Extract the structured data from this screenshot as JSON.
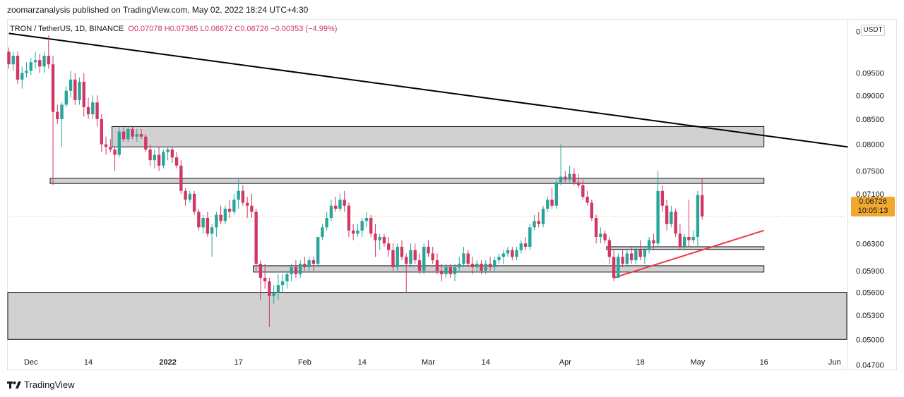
{
  "header": {
    "publisher_text": "zoomarzanalysis published on TradingView.com, May 02, 2022 18:24 UTC+4:30",
    "symbol": "TRON / TetherUS, 1D, BINANCE",
    "open": "O0.07078",
    "high": "H0.07365",
    "low": "L0.06672",
    "close": "C0.06726",
    "change": "−0.00353 (−4.99%)"
  },
  "axis": {
    "currency": "USDT",
    "price_labels": [
      "0.10500",
      "0.09500",
      "0.09000",
      "0.08500",
      "0.08000",
      "0.07500",
      "0.07100",
      "0.06300",
      "0.05900",
      "0.05600",
      "0.05300",
      "0.05000",
      "0.04700"
    ],
    "time_labels": [
      "Dec",
      "14",
      "2022",
      "17",
      "Feb",
      "14",
      "Mar",
      "14",
      "Apr",
      "18",
      "May",
      "16",
      "Jun"
    ]
  },
  "last_price": {
    "value": "0.06726",
    "countdown": "10:05:13"
  },
  "footer": {
    "logo_text": "TradingView"
  },
  "colors": {
    "up": "#26a69a",
    "down": "#ef5350",
    "down_alt": "#d13762",
    "zone": "#d1d1d1",
    "trendline": "#000000",
    "support": "#f23645",
    "last_price": "#f0a82e"
  },
  "chart_data": {
    "type": "candlestick",
    "title": "TRON / TetherUS, 1D, BINANCE",
    "ylim": [
      0.0465,
      0.108
    ],
    "y_scale": "log",
    "xlim": [
      "2021-11-26",
      "2022-06-04"
    ],
    "grid": false,
    "candles_ohlc": [
      [
        "2021-11-26",
        0.1,
        0.101,
        0.096,
        0.097
      ],
      [
        "2021-11-27",
        0.097,
        0.1,
        0.0955,
        0.099
      ],
      [
        "2021-11-28",
        0.099,
        0.1,
        0.0925,
        0.0935
      ],
      [
        "2021-11-29",
        0.0935,
        0.0965,
        0.0915,
        0.095
      ],
      [
        "2021-11-30",
        0.095,
        0.0975,
        0.094,
        0.0955
      ],
      [
        "2021-12-01",
        0.0955,
        0.0985,
        0.0945,
        0.0975
      ],
      [
        "2021-12-02",
        0.0975,
        0.1,
        0.096,
        0.098
      ],
      [
        "2021-12-03",
        0.098,
        0.0995,
        0.095,
        0.0965
      ],
      [
        "2021-12-04",
        0.0965,
        0.1,
        0.095,
        0.099
      ],
      [
        "2021-12-05",
        0.099,
        0.104,
        0.096,
        0.097
      ],
      [
        "2021-12-06",
        0.097,
        0.099,
        0.0725,
        0.0865
      ],
      [
        "2021-12-07",
        0.0865,
        0.088,
        0.084,
        0.085
      ],
      [
        "2021-12-08",
        0.085,
        0.0885,
        0.0795,
        0.088
      ],
      [
        "2021-12-09",
        0.088,
        0.092,
        0.0875,
        0.091
      ],
      [
        "2021-12-10",
        0.091,
        0.0955,
        0.0895,
        0.0935
      ],
      [
        "2021-12-11",
        0.0935,
        0.095,
        0.088,
        0.089
      ],
      [
        "2021-12-12",
        0.089,
        0.094,
        0.088,
        0.093
      ],
      [
        "2021-12-13",
        0.093,
        0.095,
        0.0855,
        0.0875
      ],
      [
        "2021-12-14",
        0.0875,
        0.0895,
        0.085,
        0.086
      ],
      [
        "2021-12-15",
        0.086,
        0.09,
        0.085,
        0.0885
      ],
      [
        "2021-12-16",
        0.0885,
        0.09,
        0.0835,
        0.085
      ],
      [
        "2021-12-17",
        0.085,
        0.086,
        0.0785,
        0.08
      ],
      [
        "2021-12-18",
        0.08,
        0.0815,
        0.078,
        0.0795
      ],
      [
        "2021-12-19",
        0.0795,
        0.081,
        0.0785,
        0.079
      ],
      [
        "2021-12-20",
        0.079,
        0.0795,
        0.075,
        0.078
      ],
      [
        "2021-12-21",
        0.078,
        0.0835,
        0.0775,
        0.0825
      ],
      [
        "2021-12-22",
        0.0825,
        0.0835,
        0.0805,
        0.081
      ],
      [
        "2021-12-23",
        0.081,
        0.0835,
        0.0805,
        0.083
      ],
      [
        "2021-12-24",
        0.083,
        0.0835,
        0.081,
        0.0815
      ],
      [
        "2021-12-25",
        0.0815,
        0.083,
        0.0805,
        0.082
      ],
      [
        "2021-12-26",
        0.082,
        0.083,
        0.081,
        0.0815
      ],
      [
        "2021-12-27",
        0.0815,
        0.082,
        0.0785,
        0.079
      ],
      [
        "2021-12-28",
        0.079,
        0.08,
        0.076,
        0.077
      ],
      [
        "2021-12-29",
        0.077,
        0.079,
        0.0755,
        0.078
      ],
      [
        "2021-12-30",
        0.078,
        0.0795,
        0.075,
        0.076
      ],
      [
        "2021-12-31",
        0.076,
        0.079,
        0.0755,
        0.0785
      ],
      [
        "2022-01-01",
        0.0785,
        0.0795,
        0.077,
        0.079
      ],
      [
        "2022-01-02",
        0.079,
        0.0795,
        0.0765,
        0.0775
      ],
      [
        "2022-01-03",
        0.0775,
        0.0785,
        0.0755,
        0.076
      ],
      [
        "2022-01-04",
        0.076,
        0.077,
        0.071,
        0.0715
      ],
      [
        "2022-01-05",
        0.0715,
        0.072,
        0.069,
        0.07
      ],
      [
        "2022-01-06",
        0.07,
        0.0715,
        0.0695,
        0.071
      ],
      [
        "2022-01-07",
        0.071,
        0.0715,
        0.0675,
        0.068
      ],
      [
        "2022-01-08",
        0.068,
        0.0685,
        0.065,
        0.0655
      ],
      [
        "2022-01-09",
        0.0655,
        0.0675,
        0.0645,
        0.067
      ],
      [
        "2022-01-10",
        0.067,
        0.068,
        0.064,
        0.0645
      ],
      [
        "2022-01-11",
        0.0645,
        0.066,
        0.061,
        0.0655
      ],
      [
        "2022-01-12",
        0.0655,
        0.068,
        0.064,
        0.0675
      ],
      [
        "2022-01-13",
        0.0675,
        0.069,
        0.066,
        0.0665
      ],
      [
        "2022-01-14",
        0.0665,
        0.069,
        0.066,
        0.0685
      ],
      [
        "2022-01-15",
        0.0685,
        0.07,
        0.067,
        0.068
      ],
      [
        "2022-01-16",
        0.068,
        0.071,
        0.0675,
        0.07
      ],
      [
        "2022-01-17",
        0.07,
        0.0735,
        0.0685,
        0.0715
      ],
      [
        "2022-01-18",
        0.0715,
        0.0725,
        0.069,
        0.0695
      ],
      [
        "2022-01-19",
        0.0695,
        0.0705,
        0.067,
        0.069
      ],
      [
        "2022-01-20",
        0.069,
        0.071,
        0.067,
        0.068
      ],
      [
        "2022-01-21",
        0.068,
        0.0685,
        0.059,
        0.06
      ],
      [
        "2022-01-22",
        0.06,
        0.0605,
        0.055,
        0.058
      ],
      [
        "2022-01-23",
        0.058,
        0.06,
        0.0565,
        0.0575
      ],
      [
        "2022-01-24",
        0.0575,
        0.058,
        0.0515,
        0.0555
      ],
      [
        "2022-01-25",
        0.0555,
        0.057,
        0.0545,
        0.056
      ],
      [
        "2022-01-26",
        0.056,
        0.0585,
        0.055,
        0.057
      ],
      [
        "2022-01-27",
        0.057,
        0.0585,
        0.056,
        0.0575
      ],
      [
        "2022-01-28",
        0.0575,
        0.059,
        0.0565,
        0.0585
      ],
      [
        "2022-01-29",
        0.0585,
        0.06,
        0.0575,
        0.0595
      ],
      [
        "2022-01-30",
        0.0595,
        0.0605,
        0.058,
        0.0585
      ],
      [
        "2022-01-31",
        0.0585,
        0.0605,
        0.058,
        0.06
      ],
      [
        "2022-02-01",
        0.06,
        0.061,
        0.059,
        0.0595
      ],
      [
        "2022-02-02",
        0.0595,
        0.061,
        0.059,
        0.0605
      ],
      [
        "2022-02-03",
        0.0605,
        0.061,
        0.059,
        0.06
      ],
      [
        "2022-02-04",
        0.06,
        0.064,
        0.0595,
        0.064
      ],
      [
        "2022-02-05",
        0.064,
        0.066,
        0.0635,
        0.0655
      ],
      [
        "2022-02-06",
        0.0655,
        0.068,
        0.065,
        0.067
      ],
      [
        "2022-02-07",
        0.067,
        0.07,
        0.0665,
        0.069
      ],
      [
        "2022-02-08",
        0.069,
        0.0705,
        0.068,
        0.0685
      ],
      [
        "2022-02-09",
        0.0685,
        0.071,
        0.068,
        0.07
      ],
      [
        "2022-02-10",
        0.07,
        0.0715,
        0.068,
        0.069
      ],
      [
        "2022-02-11",
        0.069,
        0.0695,
        0.064,
        0.065
      ],
      [
        "2022-02-12",
        0.065,
        0.066,
        0.0635,
        0.0645
      ],
      [
        "2022-02-13",
        0.0645,
        0.066,
        0.064,
        0.065
      ],
      [
        "2022-02-14",
        0.065,
        0.067,
        0.064,
        0.0665
      ],
      [
        "2022-02-15",
        0.0665,
        0.068,
        0.0655,
        0.067
      ],
      [
        "2022-02-16",
        0.067,
        0.0675,
        0.064,
        0.0645
      ],
      [
        "2022-02-17",
        0.0645,
        0.066,
        0.061,
        0.0635
      ],
      [
        "2022-02-18",
        0.0635,
        0.0645,
        0.062,
        0.064
      ],
      [
        "2022-02-19",
        0.064,
        0.0645,
        0.0625,
        0.063
      ],
      [
        "2022-02-20",
        0.063,
        0.064,
        0.061,
        0.062
      ],
      [
        "2022-02-21",
        0.062,
        0.063,
        0.059,
        0.0595
      ],
      [
        "2022-02-22",
        0.0595,
        0.063,
        0.059,
        0.0625
      ],
      [
        "2022-02-23",
        0.0625,
        0.0635,
        0.0605,
        0.061
      ],
      [
        "2022-02-24",
        0.061,
        0.0615,
        0.056,
        0.06
      ],
      [
        "2022-02-25",
        0.06,
        0.063,
        0.0595,
        0.062
      ],
      [
        "2022-02-26",
        0.062,
        0.063,
        0.06,
        0.0605
      ],
      [
        "2022-02-27",
        0.0605,
        0.0615,
        0.0585,
        0.059
      ],
      [
        "2022-02-28",
        0.059,
        0.063,
        0.0585,
        0.0625
      ],
      [
        "2022-03-01",
        0.0625,
        0.0635,
        0.061,
        0.0615
      ],
      [
        "2022-03-02",
        0.0615,
        0.0625,
        0.06,
        0.0605
      ],
      [
        "2022-03-03",
        0.0605,
        0.0615,
        0.0585,
        0.059
      ],
      [
        "2022-03-04",
        0.059,
        0.06,
        0.0575,
        0.0585
      ],
      [
        "2022-03-05",
        0.0585,
        0.06,
        0.058,
        0.0595
      ],
      [
        "2022-03-06",
        0.0595,
        0.06,
        0.058,
        0.0585
      ],
      [
        "2022-03-07",
        0.0585,
        0.06,
        0.0575,
        0.0595
      ],
      [
        "2022-03-08",
        0.0595,
        0.061,
        0.059,
        0.06
      ],
      [
        "2022-03-09",
        0.06,
        0.0625,
        0.0595,
        0.0615
      ],
      [
        "2022-03-10",
        0.0615,
        0.062,
        0.0595,
        0.06
      ],
      [
        "2022-03-11",
        0.06,
        0.061,
        0.0585,
        0.0595
      ],
      [
        "2022-03-12",
        0.0595,
        0.0605,
        0.059,
        0.06
      ],
      [
        "2022-03-13",
        0.06,
        0.0605,
        0.0585,
        0.059
      ],
      [
        "2022-03-14",
        0.059,
        0.0605,
        0.0585,
        0.06
      ],
      [
        "2022-03-15",
        0.06,
        0.061,
        0.059,
        0.0595
      ],
      [
        "2022-03-16",
        0.0595,
        0.061,
        0.059,
        0.0605
      ],
      [
        "2022-03-17",
        0.0605,
        0.0615,
        0.06,
        0.061
      ],
      [
        "2022-03-18",
        0.061,
        0.062,
        0.06,
        0.0615
      ],
      [
        "2022-03-19",
        0.0615,
        0.0625,
        0.061,
        0.062
      ],
      [
        "2022-03-20",
        0.062,
        0.0625,
        0.0605,
        0.061
      ],
      [
        "2022-03-21",
        0.061,
        0.0625,
        0.0605,
        0.062
      ],
      [
        "2022-03-22",
        0.062,
        0.0635,
        0.0615,
        0.063
      ],
      [
        "2022-03-23",
        0.063,
        0.064,
        0.062,
        0.0625
      ],
      [
        "2022-03-24",
        0.0625,
        0.066,
        0.062,
        0.0655
      ],
      [
        "2022-03-25",
        0.0655,
        0.0675,
        0.065,
        0.0665
      ],
      [
        "2022-03-26",
        0.0665,
        0.068,
        0.0655,
        0.066
      ],
      [
        "2022-03-27",
        0.066,
        0.069,
        0.0655,
        0.0685
      ],
      [
        "2022-03-28",
        0.0685,
        0.0705,
        0.068,
        0.07
      ],
      [
        "2022-03-29",
        0.07,
        0.072,
        0.0685,
        0.069
      ],
      [
        "2022-03-30",
        0.069,
        0.0735,
        0.0685,
        0.073
      ],
      [
        "2022-03-31",
        0.073,
        0.08,
        0.0725,
        0.074
      ],
      [
        "2022-04-01",
        0.074,
        0.075,
        0.073,
        0.0735
      ],
      [
        "2022-04-02",
        0.0735,
        0.076,
        0.073,
        0.0745
      ],
      [
        "2022-04-03",
        0.0745,
        0.0755,
        0.0725,
        0.073
      ],
      [
        "2022-04-04",
        0.073,
        0.0745,
        0.072,
        0.0725
      ],
      [
        "2022-04-05",
        0.0725,
        0.0735,
        0.07,
        0.0705
      ],
      [
        "2022-04-06",
        0.0705,
        0.0715,
        0.069,
        0.0695
      ],
      [
        "2022-04-07",
        0.0695,
        0.07,
        0.0665,
        0.067
      ],
      [
        "2022-04-08",
        0.067,
        0.0675,
        0.063,
        0.064
      ],
      [
        "2022-04-09",
        0.064,
        0.0655,
        0.063,
        0.0645
      ],
      [
        "2022-04-10",
        0.0645,
        0.065,
        0.063,
        0.0635
      ],
      [
        "2022-04-11",
        0.0635,
        0.064,
        0.06,
        0.061
      ],
      [
        "2022-04-12",
        0.061,
        0.062,
        0.0575,
        0.058
      ],
      [
        "2022-04-13",
        0.058,
        0.0615,
        0.058,
        0.061
      ],
      [
        "2022-04-14",
        0.061,
        0.062,
        0.0595,
        0.06
      ],
      [
        "2022-04-15",
        0.06,
        0.062,
        0.0595,
        0.0615
      ],
      [
        "2022-04-16",
        0.0615,
        0.0625,
        0.06,
        0.0605
      ],
      [
        "2022-04-17",
        0.0605,
        0.0625,
        0.06,
        0.062
      ],
      [
        "2022-04-18",
        0.062,
        0.0635,
        0.0605,
        0.061
      ],
      [
        "2022-04-19",
        0.061,
        0.0625,
        0.06,
        0.062
      ],
      [
        "2022-04-20",
        0.062,
        0.064,
        0.0615,
        0.0635
      ],
      [
        "2022-04-21",
        0.0635,
        0.0645,
        0.062,
        0.063
      ],
      [
        "2022-04-22",
        0.063,
        0.075,
        0.0625,
        0.0715
      ],
      [
        "2022-04-23",
        0.0715,
        0.0725,
        0.068,
        0.069
      ],
      [
        "2022-04-24",
        0.069,
        0.07,
        0.065,
        0.066
      ],
      [
        "2022-04-25",
        0.066,
        0.069,
        0.0655,
        0.068
      ],
      [
        "2022-04-26",
        0.068,
        0.0685,
        0.064,
        0.0645
      ],
      [
        "2022-04-27",
        0.0645,
        0.066,
        0.062,
        0.0625
      ],
      [
        "2022-04-28",
        0.0625,
        0.0645,
        0.062,
        0.064
      ],
      [
        "2022-04-29",
        0.064,
        0.07,
        0.0625,
        0.0635
      ],
      [
        "2022-04-30",
        0.0635,
        0.065,
        0.063,
        0.064
      ],
      [
        "2022-05-01",
        0.064,
        0.0715,
        0.0625,
        0.0708
      ],
      [
        "2022-05-02",
        0.07078,
        0.07365,
        0.06672,
        0.06726
      ]
    ],
    "zones": [
      {
        "from": "2021-12-20",
        "to": "2022-05-16",
        "low": 0.0795,
        "high": 0.0835
      },
      {
        "from": "2021-12-06",
        "to": "2022-05-16",
        "low": 0.0728,
        "high": 0.0737
      },
      {
        "from": "2022-01-21",
        "to": "2022-05-16",
        "low": 0.0588,
        "high": 0.0597
      },
      {
        "from": "2022-04-11",
        "to": "2022-05-16",
        "low": 0.0621,
        "high": 0.0625
      },
      {
        "from": "2021-11-26",
        "to": "2022-06-04",
        "low": 0.05,
        "high": 0.056
      }
    ],
    "trendlines": [
      {
        "name": "",
        "from": [
          "2021-11-26",
          0.1045
        ],
        "to": [
          "2022-06-04",
          0.0795
        ],
        "color": "#000000"
      },
      {
        "name": "",
        "from": [
          "2022-04-12",
          0.058
        ],
        "to": [
          "2022-05-16",
          0.065
        ],
        "color": "#f23645"
      }
    ],
    "last_price_line": 0.06726
  }
}
